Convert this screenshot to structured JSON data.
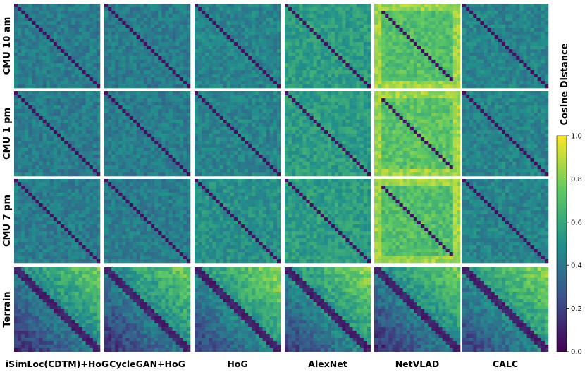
{
  "chart_data": {
    "type": "heatmap",
    "title": "",
    "rows": [
      "CMU 10 am",
      "CMU 1 pm",
      "CMU 7 pm",
      "Terrain"
    ],
    "columns": [
      "iSimLoc(CDTM)+HoG",
      "CycleGAN+HoG",
      "HoG",
      "AlexNet",
      "NetVLAD",
      "CALC"
    ],
    "colorbar": {
      "label": "Cosine Distance",
      "range": [
        0.0,
        1.0
      ],
      "ticks": [
        0.0,
        0.2,
        0.4,
        0.6,
        0.8,
        1.0
      ],
      "tick_labels": [
        "0.0",
        "0.2",
        "0.4",
        "0.6",
        "0.8",
        "1.0"
      ],
      "colormap": "viridis",
      "colors": [
        "#440154",
        "#3b528b",
        "#21918c",
        "#5ec962",
        "#fde725"
      ]
    },
    "panel_summary": [
      {
        "row": "CMU 10 am",
        "mean_distance": [
          0.42,
          0.42,
          0.45,
          0.55,
          0.7,
          0.45
        ]
      },
      {
        "row": "CMU 1 pm",
        "mean_distance": [
          0.42,
          0.42,
          0.45,
          0.55,
          0.72,
          0.45
        ]
      },
      {
        "row": "CMU 7 pm",
        "mean_distance": [
          0.42,
          0.42,
          0.5,
          0.55,
          0.7,
          0.45
        ]
      },
      {
        "row": "Terrain",
        "mean_distance": [
          0.5,
          0.5,
          0.55,
          0.55,
          0.5,
          0.55
        ]
      }
    ],
    "grid": false,
    "legend": "colorbar-right"
  }
}
